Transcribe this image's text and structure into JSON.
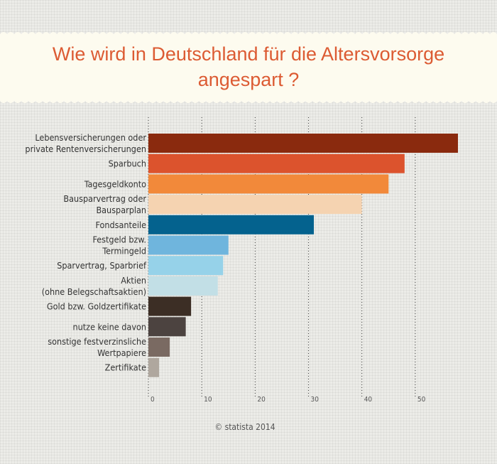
{
  "title_lines": [
    "Wie wird in Deutschland für die Altersvorsorge",
    "angespart ?"
  ],
  "copyright": "© statista 2014",
  "colors": {
    "title": "#dc5b33",
    "banner": "#fdfbef",
    "grid": "#3a3a3a",
    "label": "#333333",
    "tick": "#555555"
  },
  "chart_data": {
    "type": "bar",
    "orientation": "horizontal",
    "title": "Wie wird in Deutschland für die Altersvorsorge angespart ?",
    "xlabel": "",
    "ylabel": "",
    "xlim": [
      0,
      58
    ],
    "xticks": [
      0,
      10,
      20,
      30,
      40,
      50
    ],
    "grid": true,
    "categories": [
      [
        "Lebensversicherungen oder",
        "private Rentenversicherungen"
      ],
      [
        "Sparbuch"
      ],
      [
        "Tagesgeldkonto"
      ],
      [
        "Bausparvertrag oder",
        "Bausparplan"
      ],
      [
        "Fondsanteile"
      ],
      [
        "Festgeld bzw.",
        "Termingeld"
      ],
      [
        "Sparvertrag, Sparbrief"
      ],
      [
        "Aktien",
        "(ohne Belegschaftsaktien)"
      ],
      [
        "Gold bzw. Goldzertifikate"
      ],
      [
        "nutze keine davon"
      ],
      [
        "sonstige festverzinsliche",
        "Wertpapiere"
      ],
      [
        "Zertifikate"
      ]
    ],
    "values": [
      58,
      48,
      45,
      40,
      31,
      15,
      14,
      13,
      8,
      7,
      4,
      2
    ],
    "colors": [
      "#8a2a0e",
      "#dc532d",
      "#f2893a",
      "#f5d3b1",
      "#04628e",
      "#6fb5dd",
      "#96d2e9",
      "#c2dfe6",
      "#3c2e25",
      "#4c4340",
      "#7a6a62",
      "#afa79e"
    ]
  }
}
